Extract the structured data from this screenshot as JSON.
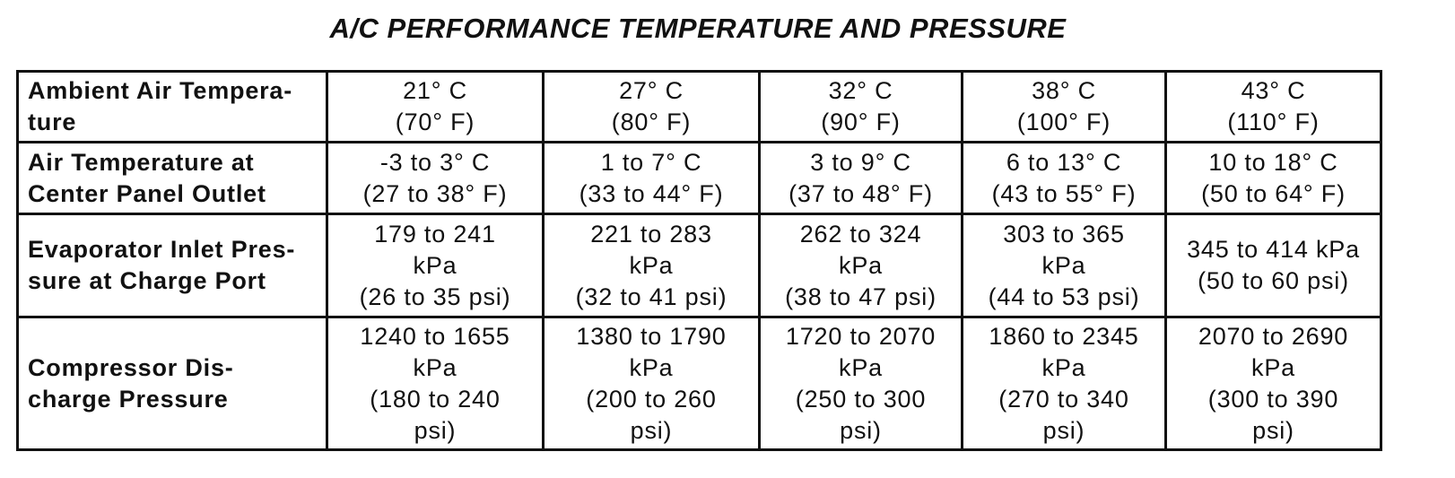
{
  "header": {
    "title": "A/C PERFORMANCE TEMPERATURE AND PRESSURE"
  },
  "table": {
    "rows": [
      {
        "label": [
          "Ambient Air Tempera-",
          "ture"
        ],
        "cells": [
          [
            "21° C",
            "(70° F)"
          ],
          [
            "27° C",
            "(80° F)"
          ],
          [
            "32° C",
            "(90° F)"
          ],
          [
            "38° C",
            "(100° F)"
          ],
          [
            "43° C",
            "(110° F)"
          ]
        ]
      },
      {
        "label": [
          "Air Temperature at",
          "Center Panel Outlet"
        ],
        "cells": [
          [
            "-3 to 3° C",
            "(27 to 38° F)"
          ],
          [
            "1 to 7° C",
            "(33 to 44° F)"
          ],
          [
            "3 to 9° C",
            "(37 to 48° F)"
          ],
          [
            "6 to 13° C",
            "(43 to 55° F)"
          ],
          [
            "10 to 18° C",
            "(50 to 64° F)"
          ]
        ]
      },
      {
        "label": [
          "Evaporator Inlet Pres-",
          "sure at Charge Port"
        ],
        "cells": [
          [
            "179 to 241",
            "kPa",
            "(26 to 35 psi)"
          ],
          [
            "221 to 283",
            "kPa",
            "(32 to 41 psi)"
          ],
          [
            "262 to 324",
            "kPa",
            "(38 to 47 psi)"
          ],
          [
            "303 to 365",
            "kPa",
            "(44 to 53 psi)"
          ],
          [
            "345 to 414 kPa",
            "(50 to 60 psi)"
          ]
        ]
      },
      {
        "label": [
          "Compressor Dis-",
          "charge Pressure"
        ],
        "cells": [
          [
            "1240 to 1655",
            "kPa",
            "(180 to 240",
            "psi)"
          ],
          [
            "1380 to 1790",
            "kPa",
            "(200 to 260",
            "psi)"
          ],
          [
            "1720 to 2070",
            "kPa",
            "(250 to 300",
            "psi)"
          ],
          [
            "1860 to 2345",
            "kPa",
            "(270 to 340",
            "psi)"
          ],
          [
            "2070 to 2690",
            "kPa",
            "(300 to 390",
            "psi)"
          ]
        ]
      }
    ]
  }
}
